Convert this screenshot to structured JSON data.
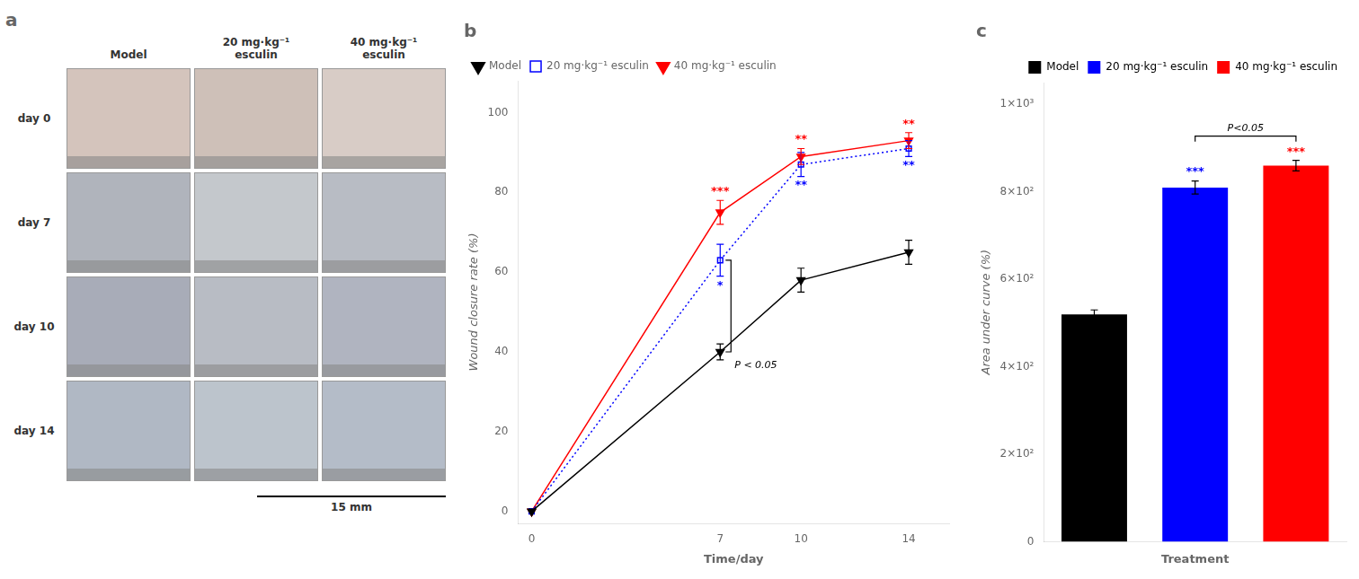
{
  "chart_data": [
    {
      "type": "image_grid",
      "title": "a",
      "categories": [
        "Model",
        "20 mg·kg⁻¹\nesculin",
        "40 mg·kg⁻¹\nesculin"
      ],
      "rows": [
        "day 0",
        "day 7",
        "day 10",
        "day 14"
      ],
      "annotations": [
        {
          "text": "15 mm"
        }
      ]
    },
    {
      "type": "line",
      "title": "b",
      "xlabel": "Time/day",
      "ylabel": "Wound closure rate (%)",
      "x": [
        0,
        7,
        10,
        14
      ],
      "xlim": [
        -0.5,
        15.5
      ],
      "xticks": [
        0,
        7,
        10,
        14
      ],
      "ylim": [
        -3,
        108
      ],
      "yticks": [
        0,
        20,
        40,
        60,
        80,
        100
      ],
      "grid": false,
      "legend": "upper left",
      "series": [
        {
          "name": "Model",
          "color": "#000000",
          "values": [
            0,
            40,
            58,
            65
          ],
          "errors": [
            0,
            2,
            3,
            3
          ],
          "marker": "triangle_down",
          "line_style": "solid"
        },
        {
          "name": "20 mg·kg⁻¹ esculin",
          "color": "#0000FF",
          "values": [
            0,
            63,
            87,
            91
          ],
          "errors": [
            0,
            4,
            3,
            2
          ],
          "marker": "open_square",
          "line_style": "dotted"
        },
        {
          "name": "40 mg·kg⁻¹ esculin",
          "color": "#FF0000",
          "values": [
            0,
            75,
            89,
            93
          ],
          "errors": [
            0,
            3,
            2,
            2
          ],
          "marker": "triangle_down",
          "line_style": "solid"
        }
      ],
      "annotations": [
        {
          "text": "*",
          "x": 7,
          "series": "20 mg·kg⁻¹ esculin",
          "side": "below"
        },
        {
          "text": "***",
          "x": 7,
          "series": "40 mg·kg⁻¹ esculin",
          "side": "above"
        },
        {
          "text": "**",
          "x": 10,
          "series": "20 mg·kg⁻¹ esculin",
          "side": "below"
        },
        {
          "text": "**",
          "x": 10,
          "series": "40 mg·kg⁻¹ esculin",
          "side": "above"
        },
        {
          "text": "**",
          "x": 14,
          "series": "20 mg·kg⁻¹ esculin",
          "side": "below"
        },
        {
          "text": "**",
          "x": 14,
          "series": "40 mg·kg⁻¹ esculin",
          "side": "above"
        },
        {
          "text": "P < 0.05",
          "x": 7,
          "between": [
            "Model",
            "20 mg·kg⁻¹ esculin"
          ]
        }
      ]
    },
    {
      "type": "bar",
      "title": "c",
      "xlabel": "Treatment",
      "ylabel": "Area under curve (%)",
      "categories": [
        "Model",
        "20 mg·kg⁻¹ esculin",
        "40 mg·kg⁻¹ esculin"
      ],
      "values": [
        520,
        810,
        860
      ],
      "errors": [
        10,
        15,
        12
      ],
      "colors": [
        "#000000",
        "#0000FF",
        "#FF0000"
      ],
      "ylim": [
        0,
        1050
      ],
      "yticks": [
        0,
        {
          "value": 200,
          "label": "2×10²"
        },
        {
          "value": 400,
          "label": "4×10²"
        },
        {
          "value": 600,
          "label": "6×10²"
        },
        {
          "value": 800,
          "label": "8×10²"
        },
        {
          "value": 1000,
          "label": "1×10³"
        }
      ],
      "grid": false,
      "legend": "upper right",
      "tick_labels": "y",
      "annotations": [
        {
          "text": "***",
          "category": "20 mg·kg⁻¹ esculin",
          "side": "above"
        },
        {
          "text": "***",
          "category": "40 mg·kg⁻¹ esculin",
          "side": "above"
        },
        {
          "text": "P<0.05",
          "between": [
            "20 mg·kg⁻¹ esculin",
            "40 mg·kg⁻¹ esculin"
          ]
        }
      ]
    }
  ]
}
